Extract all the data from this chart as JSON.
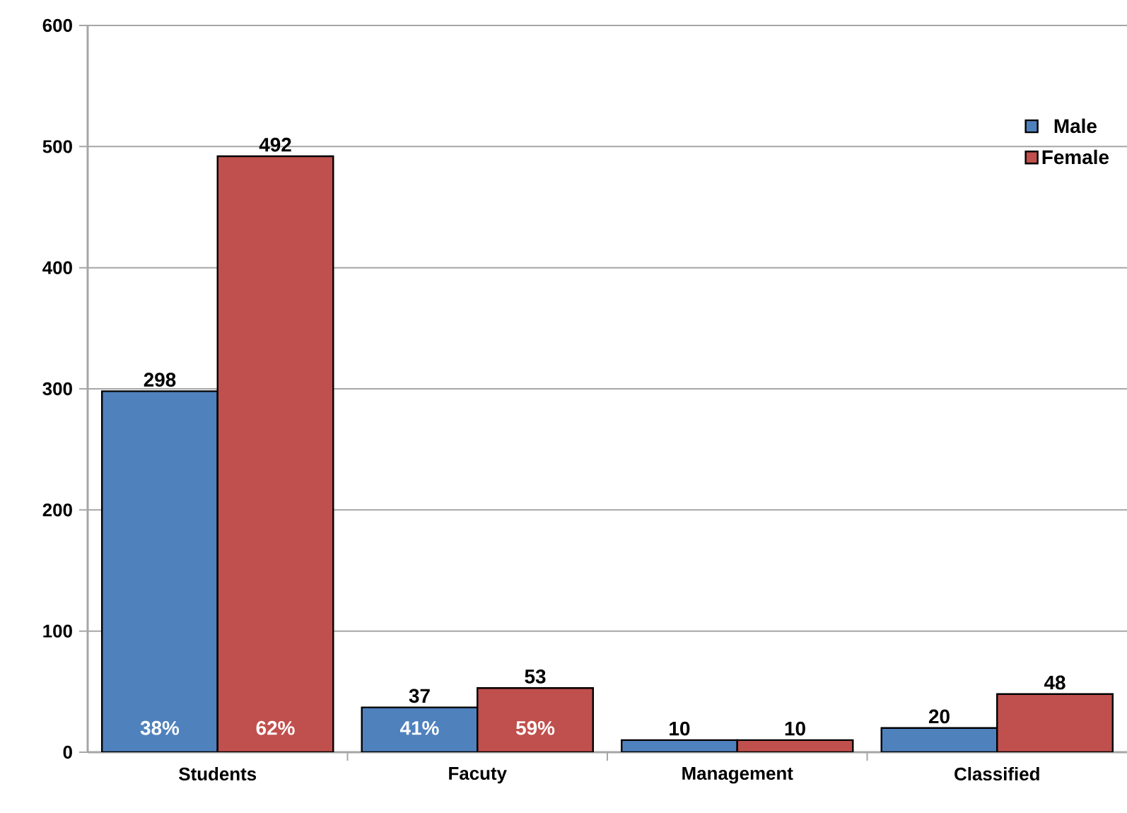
{
  "chart_data": {
    "type": "bar",
    "categories": [
      "Students",
      "Facuty",
      "Management",
      "Classified"
    ],
    "series": [
      {
        "name": "Male",
        "color": "#4f81bd",
        "values": [
          298,
          37,
          10,
          20
        ]
      },
      {
        "name": "Female",
        "color": "#c0504d",
        "values": [
          492,
          53,
          10,
          48
        ]
      }
    ],
    "ylim": [
      0,
      600
    ],
    "yticks": [
      0,
      100,
      200,
      300,
      400,
      500,
      600
    ],
    "grid": "y",
    "legend": "top right",
    "data_labels": true,
    "annotations": [
      {
        "text": "38%",
        "x": "Students",
        "y": 20
      },
      {
        "text": "62%",
        "x": "Students",
        "y": 20
      },
      {
        "text": "41%",
        "x": "Facuty",
        "y": 20
      },
      {
        "text": "59%",
        "x": "Facuty",
        "y": 20
      }
    ]
  }
}
